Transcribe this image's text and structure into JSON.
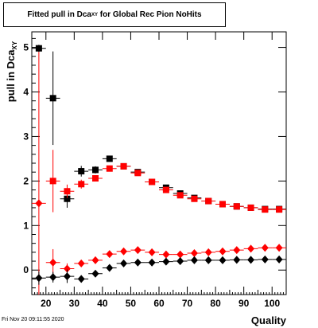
{
  "title": {
    "main": "Fitted pull in Dca",
    "sub": "XY",
    "rest": " for Global Rec Pion NoHits"
  },
  "footer": {
    "timestamp": "Fri Nov 20 09:11:55 2020"
  },
  "chart_data": {
    "type": "scatter",
    "xlabel": "Quality",
    "ylabel": "pull in Dca",
    "ylabel_sub": "XY",
    "xlim": [
      15,
      105
    ],
    "ylim": [
      -0.55,
      5.35
    ],
    "xticks": [
      20,
      30,
      40,
      50,
      60,
      70,
      80,
      90,
      100
    ],
    "yticks": [
      0,
      1,
      2,
      3,
      4,
      5
    ],
    "grid": false,
    "colors": {
      "black": "#000000",
      "red": "#ff0000"
    },
    "series": [
      {
        "color": "#000000",
        "marker": "square",
        "x": [
          17.5,
          22.5,
          27.5,
          32.5,
          37.5,
          42.5,
          47.5,
          52.5,
          57.5,
          62.5,
          67.5,
          72.5,
          77.5,
          82.5,
          87.5,
          92.5,
          97.5,
          102.5
        ],
        "y": [
          4.98,
          3.86,
          1.6,
          2.22,
          2.25,
          2.5,
          2.33,
          2.2,
          1.98,
          1.85,
          1.72,
          1.62,
          1.55,
          1.48,
          1.43,
          1.4,
          1.37,
          1.37
        ],
        "err": [
          0.08,
          1.05,
          0.2,
          0.12,
          0.08,
          0.06,
          0.05,
          0.04,
          0.04,
          0.03,
          0.03,
          0.03,
          0.03,
          0.03,
          0.03,
          0.03,
          0.03,
          0.03
        ]
      },
      {
        "color": "#ff0000",
        "marker": "square",
        "x": [
          22.5,
          27.5,
          32.5,
          37.5,
          42.5,
          47.5,
          52.5,
          57.5,
          62.5,
          67.5,
          72.5,
          77.5,
          82.5,
          87.5,
          92.5,
          97.5,
          102.5
        ],
        "y": [
          2.0,
          1.77,
          1.93,
          2.06,
          2.28,
          2.33,
          2.18,
          1.98,
          1.8,
          1.68,
          1.6,
          1.55,
          1.48,
          1.43,
          1.4,
          1.36,
          1.36
        ],
        "err": [
          0.7,
          0.15,
          0.1,
          0.07,
          0.05,
          0.04,
          0.04,
          0.03,
          0.03,
          0.03,
          0.03,
          0.03,
          0.03,
          0.03,
          0.03,
          0.03,
          0.03
        ]
      },
      {
        "color": "#ff0000",
        "marker": "diamond",
        "x": [
          17.5,
          22.5,
          27.5,
          32.5,
          37.5,
          42.5,
          47.5,
          52.5,
          57.5,
          62.5,
          67.5,
          72.5,
          77.5,
          82.5,
          87.5,
          92.5,
          97.5,
          102.5
        ],
        "y": [
          1.5,
          0.17,
          0.03,
          0.15,
          0.22,
          0.36,
          0.42,
          0.45,
          0.4,
          0.35,
          0.35,
          0.38,
          0.4,
          0.42,
          0.45,
          0.48,
          0.5,
          0.5
        ],
        "err": [
          3.4,
          0.3,
          0.12,
          0.06,
          0.04,
          0.03,
          0.03,
          0.03,
          0.03,
          0.03,
          0.03,
          0.03,
          0.03,
          0.03,
          0.03,
          0.03,
          0.03,
          0.03
        ]
      },
      {
        "color": "#000000",
        "marker": "diamond",
        "x": [
          17.5,
          22.5,
          27.5,
          32.5,
          37.5,
          42.5,
          47.5,
          52.5,
          57.5,
          62.5,
          67.5,
          72.5,
          77.5,
          82.5,
          87.5,
          92.5,
          97.5,
          102.5
        ],
        "y": [
          -0.18,
          -0.16,
          -0.14,
          -0.2,
          -0.08,
          0.05,
          0.15,
          0.17,
          0.17,
          0.19,
          0.2,
          0.22,
          0.22,
          0.22,
          0.23,
          0.23,
          0.24,
          0.24
        ],
        "err": [
          0.15,
          0.12,
          0.15,
          0.08,
          0.05,
          0.04,
          0.03,
          0.03,
          0.03,
          0.03,
          0.03,
          0.03,
          0.03,
          0.03,
          0.03,
          0.03,
          0.03,
          0.03
        ]
      }
    ]
  }
}
